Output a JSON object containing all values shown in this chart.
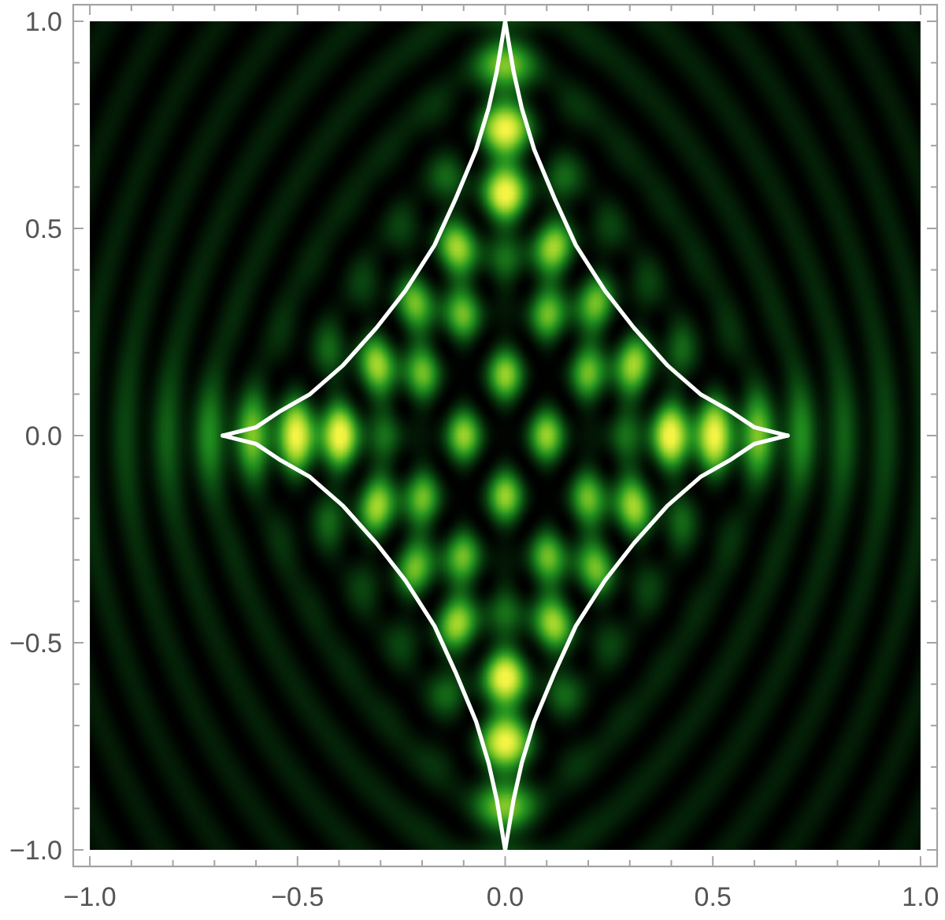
{
  "chart_data": {
    "type": "line",
    "xlim": [
      -1.04,
      1.04
    ],
    "ylim": [
      -1.04,
      1.04
    ],
    "xticks": [
      {
        "value": -1,
        "label": "−1.0"
      },
      {
        "value": -0.9,
        "label": null
      },
      {
        "value": -0.8,
        "label": null
      },
      {
        "value": -0.7,
        "label": null
      },
      {
        "value": -0.6,
        "label": null
      },
      {
        "value": -0.5,
        "label": "−0.5"
      },
      {
        "value": -0.4,
        "label": null
      },
      {
        "value": -0.3,
        "label": null
      },
      {
        "value": -0.2,
        "label": null
      },
      {
        "value": -0.1,
        "label": null
      },
      {
        "value": 0,
        "label": "0.0"
      },
      {
        "value": 0.1,
        "label": null
      },
      {
        "value": 0.2,
        "label": null
      },
      {
        "value": 0.3,
        "label": null
      },
      {
        "value": 0.4,
        "label": null
      },
      {
        "value": 0.5,
        "label": "0.5"
      },
      {
        "value": 0.6,
        "label": null
      },
      {
        "value": 0.7,
        "label": null
      },
      {
        "value": 0.8,
        "label": null
      },
      {
        "value": 0.9,
        "label": null
      },
      {
        "value": 1,
        "label": "1.0"
      }
    ],
    "yticks": [
      {
        "value": -1,
        "label": "−1.0"
      },
      {
        "value": -0.9,
        "label": null
      },
      {
        "value": -0.8,
        "label": null
      },
      {
        "value": -0.7,
        "label": null
      },
      {
        "value": -0.6,
        "label": null
      },
      {
        "value": -0.5,
        "label": "−0.5"
      },
      {
        "value": -0.4,
        "label": null
      },
      {
        "value": -0.3,
        "label": null
      },
      {
        "value": -0.2,
        "label": null
      },
      {
        "value": -0.1,
        "label": null
      },
      {
        "value": 0,
        "label": "0.0"
      },
      {
        "value": 0.1,
        "label": null
      },
      {
        "value": 0.2,
        "label": null
      },
      {
        "value": 0.3,
        "label": null
      },
      {
        "value": 0.4,
        "label": null
      },
      {
        "value": 0.5,
        "label": "0.5"
      },
      {
        "value": 0.6,
        "label": null
      },
      {
        "value": 0.7,
        "label": null
      },
      {
        "value": 0.8,
        "label": null
      },
      {
        "value": 0.9,
        "label": null
      },
      {
        "value": 1,
        "label": "1.0"
      }
    ],
    "series": [
      {
        "color": "#ffffff",
        "x": [
          -0.68,
          -0.64,
          -0.6,
          -0.54,
          -0.47,
          -0.39,
          -0.31,
          -0.24,
          -0.17,
          -0.12,
          -0.07,
          -0.04,
          -0.02,
          -0.01,
          0
        ],
        "values": [
          0,
          0.01,
          0.02,
          0.06,
          0.1,
          0.17,
          0.26,
          0.35,
          0.46,
          0.57,
          0.69,
          0.79,
          0.88,
          0.94,
          1
        ]
      },
      {
        "color": "#ffffff",
        "x": [
          0,
          0.01,
          0.02,
          0.04,
          0.07,
          0.12,
          0.17,
          0.24,
          0.31,
          0.39,
          0.47,
          0.54,
          0.6,
          0.64,
          0.68
        ],
        "values": [
          1,
          0.94,
          0.88,
          0.79,
          0.69,
          0.57,
          0.46,
          0.35,
          0.26,
          0.17,
          0.1,
          0.06,
          0.02,
          0.01,
          0
        ]
      },
      {
        "color": "#ffffff",
        "x": [
          -0.68,
          -0.64,
          -0.6,
          -0.54,
          -0.47,
          -0.39,
          -0.31,
          -0.24,
          -0.17,
          -0.12,
          -0.07,
          -0.04,
          -0.02,
          -0.01,
          0
        ],
        "values": [
          0,
          -0.01,
          -0.02,
          -0.06,
          -0.1,
          -0.17,
          -0.26,
          -0.35,
          -0.46,
          -0.57,
          -0.69,
          -0.79,
          -0.88,
          -0.94,
          -1
        ]
      },
      {
        "color": "#ffffff",
        "x": [
          0,
          0.01,
          0.02,
          0.04,
          0.07,
          0.12,
          0.17,
          0.24,
          0.31,
          0.39,
          0.47,
          0.54,
          0.6,
          0.64,
          0.68
        ],
        "values": [
          -1,
          -0.94,
          -0.88,
          -0.79,
          -0.69,
          -0.57,
          -0.46,
          -0.35,
          -0.26,
          -0.17,
          -0.1,
          -0.06,
          -0.02,
          -0.01,
          0
        ]
      }
    ]
  }
}
